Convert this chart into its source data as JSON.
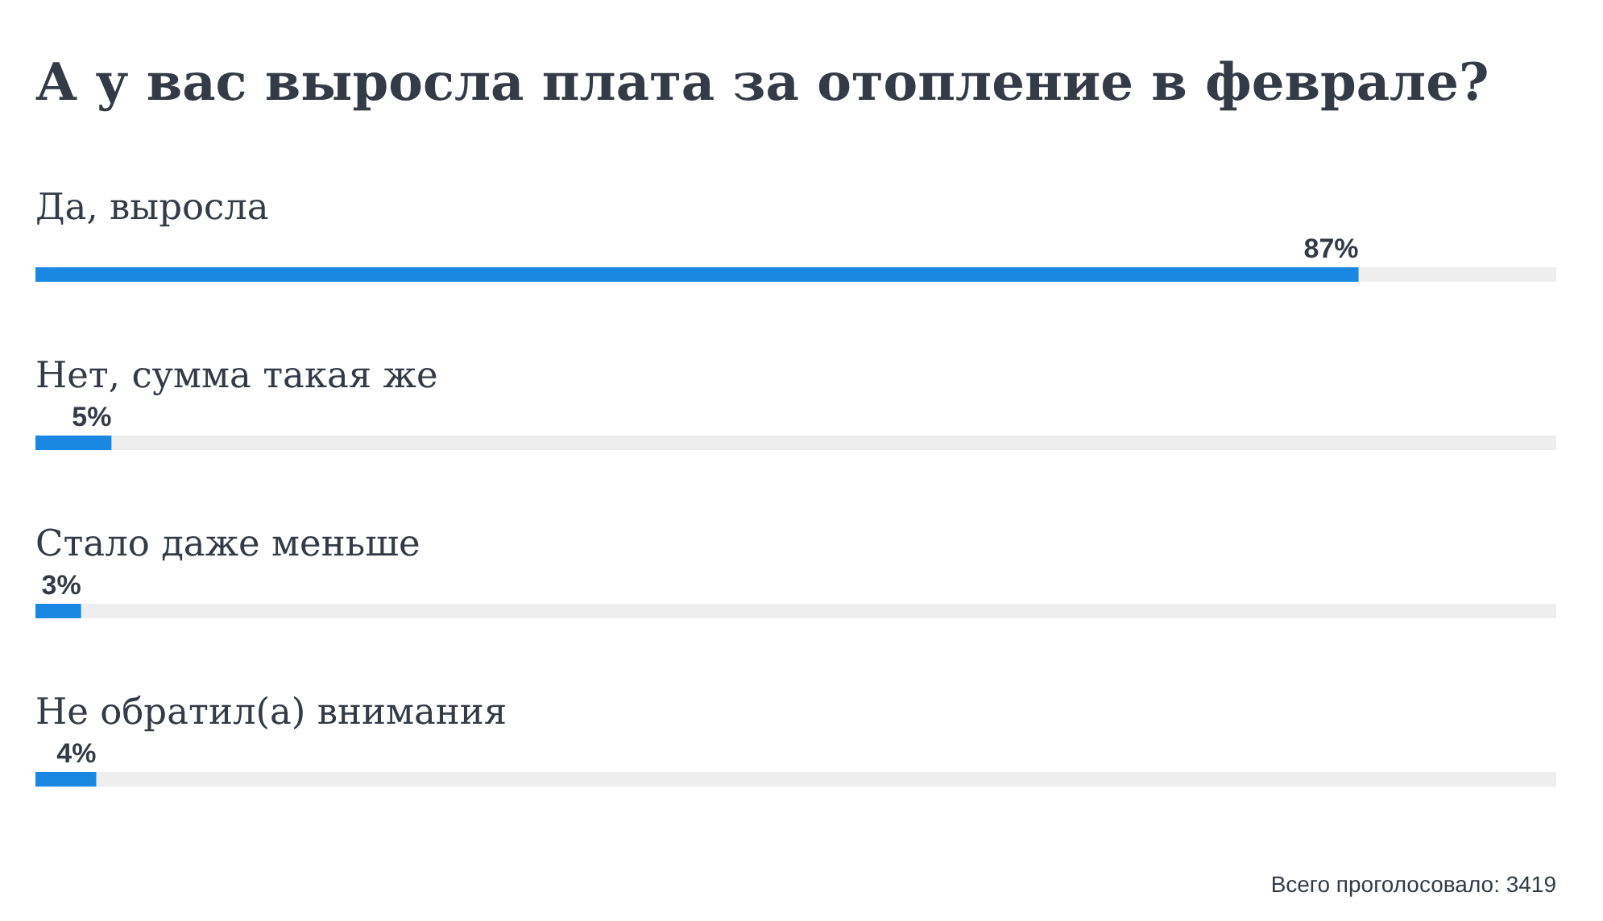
{
  "chart_data": {
    "type": "bar",
    "orientation": "horizontal",
    "title": "А у вас выросла плата за отопление в феврале?",
    "categories": [
      "Да, выросла",
      "Нет, сумма такая же",
      "Стало даже меньше",
      "Не обратил(а) внимания"
    ],
    "series": [
      {
        "color": "#1a88e2",
        "values": [
          87,
          5,
          3,
          4
        ],
        "value_labels": [
          "87%",
          "5%",
          "3%",
          "4%"
        ]
      }
    ],
    "xlim": [
      0,
      100
    ],
    "tick_labels": "y",
    "annotations": [
      "Всего проголосовало: 3419"
    ]
  }
}
